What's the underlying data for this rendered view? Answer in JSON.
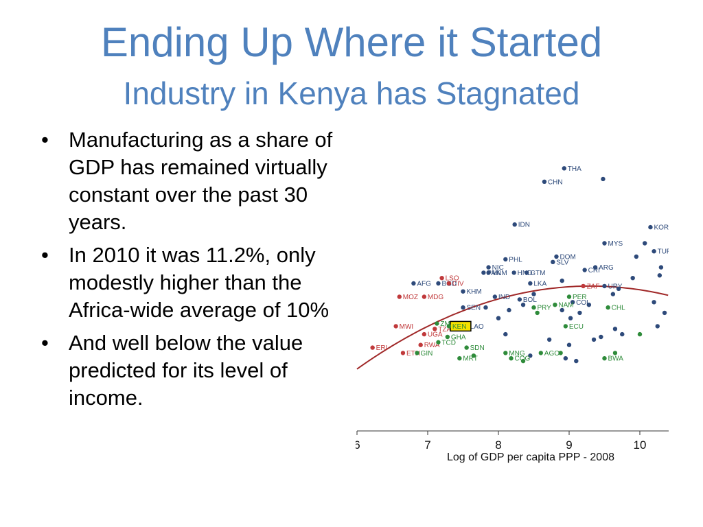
{
  "slide": {
    "title": "Ending Up Where it Started",
    "subtitle": "Industry in Kenya has Stagnated",
    "bullets": [
      "Manufacturing as a share of GDP has remained virtually constant over the past 30 years.",
      "In 2010 it was 11.2%, only modestly higher than the Africa-wide average of 10%",
      "And well below the value predicted for its level of income."
    ],
    "bullet_glyph": "•"
  },
  "colors": {
    "title": "#4f81bd",
    "asia_latam": "#2e4a7a",
    "africa_low": "#c0393b",
    "africa_other": "#2e8b3a",
    "curve": "#a02828",
    "highlight": "#f5e000"
  },
  "chart_data": {
    "type": "scatter",
    "title": "",
    "xlabel": "Log of GDP per capita PPP - 2008",
    "ylabel": "",
    "xlim": [
      6,
      10.4
    ],
    "ylim": [
      0,
      1
    ],
    "x_ticks": [
      "6",
      "7",
      "8",
      "9",
      "10"
    ],
    "grid": false,
    "highlight_label": "KEN",
    "fit_curve": {
      "type": "quadratic",
      "peak_x": 9.3,
      "peak_y": 0.49,
      "y_at_6": 0.18
    },
    "series": [
      {
        "color": "#2e4a7a",
        "points": [
          {
            "x": 8.93,
            "y": 0.93,
            "label": "THA"
          },
          {
            "x": 8.65,
            "y": 0.88,
            "label": "CHN"
          },
          {
            "x": 8.23,
            "y": 0.72,
            "label": "IDN"
          },
          {
            "x": 9.5,
            "y": 0.65,
            "label": "MYS"
          },
          {
            "x": 10.15,
            "y": 0.71,
            "label": "KOR"
          },
          {
            "x": 8.82,
            "y": 0.6,
            "label": "DOM"
          },
          {
            "x": 8.77,
            "y": 0.58,
            "label": "SLV"
          },
          {
            "x": 8.1,
            "y": 0.59,
            "label": "PHL"
          },
          {
            "x": 9.37,
            "y": 0.56,
            "label": "ARG"
          },
          {
            "x": 9.22,
            "y": 0.55,
            "label": "CRI"
          },
          {
            "x": 7.86,
            "y": 0.56,
            "label": "NIC"
          },
          {
            "x": 7.86,
            "y": 0.54,
            "label": "VNM"
          },
          {
            "x": 7.79,
            "y": 0.54,
            "label": "PAK"
          },
          {
            "x": 8.22,
            "y": 0.54,
            "label": "HND"
          },
          {
            "x": 8.4,
            "y": 0.54,
            "label": "GTM"
          },
          {
            "x": 8.45,
            "y": 0.5,
            "label": "LKA"
          },
          {
            "x": 7.15,
            "y": 0.5,
            "label": "BGD"
          },
          {
            "x": 6.8,
            "y": 0.5,
            "label": "AFG"
          },
          {
            "x": 7.5,
            "y": 0.47,
            "label": "KHM"
          },
          {
            "x": 7.95,
            "y": 0.45,
            "label": "IND"
          },
          {
            "x": 8.3,
            "y": 0.44,
            "label": "BOL"
          },
          {
            "x": 9.5,
            "y": 0.49,
            "label": "URY"
          },
          {
            "x": 9.05,
            "y": 0.43,
            "label": "COL"
          },
          {
            "x": 7.5,
            "y": 0.41,
            "label": "SEN"
          },
          {
            "x": 7.55,
            "y": 0.34,
            "label": "LAO"
          },
          {
            "x": 10.2,
            "y": 0.62,
            "label": "TUR"
          },
          {
            "x": 9.48,
            "y": 0.89,
            "label": ""
          },
          {
            "x": 10.07,
            "y": 0.65,
            "label": ""
          },
          {
            "x": 9.95,
            "y": 0.6,
            "label": ""
          },
          {
            "x": 10.3,
            "y": 0.56,
            "label": ""
          },
          {
            "x": 10.28,
            "y": 0.53,
            "label": ""
          },
          {
            "x": 9.9,
            "y": 0.52,
            "label": ""
          },
          {
            "x": 9.7,
            "y": 0.48,
            "label": ""
          },
          {
            "x": 9.62,
            "y": 0.46,
            "label": ""
          },
          {
            "x": 10.2,
            "y": 0.43,
            "label": ""
          },
          {
            "x": 10.35,
            "y": 0.39,
            "label": ""
          },
          {
            "x": 10.25,
            "y": 0.34,
            "label": ""
          },
          {
            "x": 9.65,
            "y": 0.33,
            "label": ""
          },
          {
            "x": 9.75,
            "y": 0.31,
            "label": ""
          },
          {
            "x": 9.35,
            "y": 0.29,
            "label": ""
          },
          {
            "x": 9.0,
            "y": 0.27,
            "label": ""
          },
          {
            "x": 8.95,
            "y": 0.22,
            "label": ""
          },
          {
            "x": 9.1,
            "y": 0.21,
            "label": ""
          },
          {
            "x": 9.45,
            "y": 0.3,
            "label": ""
          },
          {
            "x": 8.9,
            "y": 0.51,
            "label": ""
          },
          {
            "x": 9.28,
            "y": 0.42,
            "label": ""
          },
          {
            "x": 9.15,
            "y": 0.39,
            "label": ""
          },
          {
            "x": 8.5,
            "y": 0.46,
            "label": ""
          },
          {
            "x": 8.35,
            "y": 0.42,
            "label": ""
          },
          {
            "x": 8.15,
            "y": 0.4,
            "label": ""
          },
          {
            "x": 7.82,
            "y": 0.41,
            "label": ""
          },
          {
            "x": 8.0,
            "y": 0.37,
            "label": ""
          },
          {
            "x": 8.9,
            "y": 0.4,
            "label": ""
          },
          {
            "x": 9.02,
            "y": 0.37,
            "label": ""
          },
          {
            "x": 8.72,
            "y": 0.29,
            "label": ""
          },
          {
            "x": 8.45,
            "y": 0.23,
            "label": ""
          },
          {
            "x": 8.1,
            "y": 0.31,
            "label": ""
          }
        ]
      },
      {
        "color": "#c0393b",
        "points": [
          {
            "x": 7.2,
            "y": 0.52,
            "label": "LSO"
          },
          {
            "x": 7.3,
            "y": 0.5,
            "label": "CIV"
          },
          {
            "x": 6.6,
            "y": 0.45,
            "label": "MOZ"
          },
          {
            "x": 6.95,
            "y": 0.45,
            "label": "MDG"
          },
          {
            "x": 6.55,
            "y": 0.34,
            "label": "MWI"
          },
          {
            "x": 6.22,
            "y": 0.26,
            "label": "ERI"
          },
          {
            "x": 6.65,
            "y": 0.24,
            "label": "ETH"
          },
          {
            "x": 6.95,
            "y": 0.31,
            "label": "UGA"
          },
          {
            "x": 6.9,
            "y": 0.27,
            "label": "RWA"
          },
          {
            "x": 7.1,
            "y": 0.33,
            "label": "TZA"
          },
          {
            "x": 9.2,
            "y": 0.49,
            "label": "ZAF"
          }
        ]
      },
      {
        "color": "#2e8b3a",
        "points": [
          {
            "x": 7.13,
            "y": 0.35,
            "label": "ZMB"
          },
          {
            "x": 7.28,
            "y": 0.3,
            "label": "GHA"
          },
          {
            "x": 7.15,
            "y": 0.28,
            "label": "TCD"
          },
          {
            "x": 7.55,
            "y": 0.26,
            "label": "SDN"
          },
          {
            "x": 6.85,
            "y": 0.24,
            "label": "GIN"
          },
          {
            "x": 7.45,
            "y": 0.22,
            "label": "MRT"
          },
          {
            "x": 8.1,
            "y": 0.24,
            "label": "MNG"
          },
          {
            "x": 8.18,
            "y": 0.22,
            "label": "COG"
          },
          {
            "x": 8.6,
            "y": 0.24,
            "label": "AGO"
          },
          {
            "x": 8.95,
            "y": 0.34,
            "label": "ECU"
          },
          {
            "x": 9.0,
            "y": 0.45,
            "label": "PER"
          },
          {
            "x": 8.5,
            "y": 0.41,
            "label": "PRY"
          },
          {
            "x": 8.8,
            "y": 0.42,
            "label": "NAM"
          },
          {
            "x": 9.55,
            "y": 0.41,
            "label": "CHL"
          },
          {
            "x": 9.5,
            "y": 0.22,
            "label": "BWA"
          },
          {
            "x": 7.3,
            "y": 0.34,
            "label": "KEN"
          },
          {
            "x": 8.55,
            "y": 0.39,
            "label": ""
          },
          {
            "x": 8.88,
            "y": 0.24,
            "label": ""
          },
          {
            "x": 9.65,
            "y": 0.24,
            "label": ""
          },
          {
            "x": 10.0,
            "y": 0.31,
            "label": ""
          },
          {
            "x": 8.35,
            "y": 0.21,
            "label": ""
          },
          {
            "x": 7.65,
            "y": 0.23,
            "label": ""
          }
        ]
      }
    ]
  }
}
